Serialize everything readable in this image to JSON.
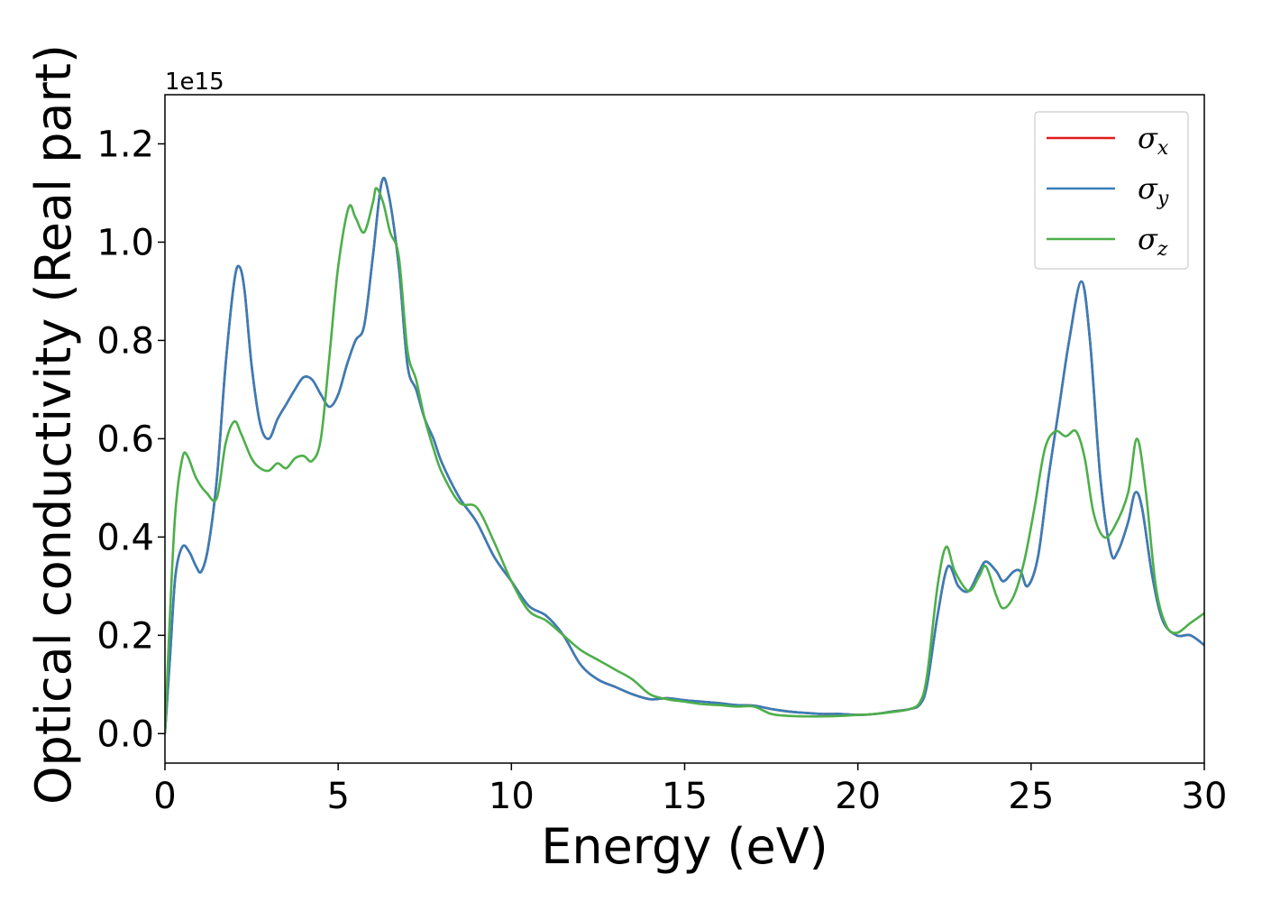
{
  "chart_data": {
    "type": "line",
    "xlabel": "Energy (eV)",
    "ylabel": "Optical conductivity (Real part)",
    "y_offset_label": "1e15",
    "xlim": [
      0,
      30
    ],
    "ylim": [
      -0.06,
      1.3
    ],
    "x_ticks": [
      0,
      5,
      10,
      15,
      20,
      25,
      30
    ],
    "x_tick_labels": [
      "0",
      "5",
      "10",
      "15",
      "20",
      "25",
      "30"
    ],
    "y_ticks": [
      0.0,
      0.2,
      0.4,
      0.6,
      0.8,
      1.0,
      1.2
    ],
    "y_tick_labels": [
      "0.0",
      "0.2",
      "0.4",
      "0.6",
      "0.8",
      "1.0",
      "1.2"
    ],
    "grid": false,
    "legend_position": "top-right",
    "series": [
      {
        "name": "σ",
        "subscript": "x",
        "color": "#e41a1c",
        "points": [
          [
            0,
            0.0
          ],
          [
            0.15,
            0.16
          ],
          [
            0.3,
            0.32
          ],
          [
            0.5,
            0.38
          ],
          [
            0.7,
            0.37
          ],
          [
            0.9,
            0.34
          ],
          [
            1.05,
            0.33
          ],
          [
            1.25,
            0.38
          ],
          [
            1.5,
            0.52
          ],
          [
            1.75,
            0.75
          ],
          [
            2.0,
            0.92
          ],
          [
            2.15,
            0.95
          ],
          [
            2.3,
            0.9
          ],
          [
            2.5,
            0.75
          ],
          [
            2.75,
            0.63
          ],
          [
            3.0,
            0.6
          ],
          [
            3.25,
            0.64
          ],
          [
            3.5,
            0.67
          ],
          [
            3.75,
            0.7
          ],
          [
            4.0,
            0.725
          ],
          [
            4.25,
            0.72
          ],
          [
            4.5,
            0.69
          ],
          [
            4.75,
            0.665
          ],
          [
            5.0,
            0.69
          ],
          [
            5.25,
            0.75
          ],
          [
            5.5,
            0.8
          ],
          [
            5.75,
            0.83
          ],
          [
            6.0,
            0.97
          ],
          [
            6.25,
            1.12
          ],
          [
            6.45,
            1.1
          ],
          [
            6.75,
            0.95
          ],
          [
            7.0,
            0.75
          ],
          [
            7.25,
            0.7
          ],
          [
            7.5,
            0.64
          ],
          [
            7.75,
            0.6
          ],
          [
            8.0,
            0.55
          ],
          [
            8.5,
            0.48
          ],
          [
            9.0,
            0.43
          ],
          [
            9.5,
            0.36
          ],
          [
            10.0,
            0.31
          ],
          [
            10.5,
            0.26
          ],
          [
            11.0,
            0.24
          ],
          [
            11.5,
            0.2
          ],
          [
            12.0,
            0.14
          ],
          [
            12.5,
            0.11
          ],
          [
            13.0,
            0.095
          ],
          [
            13.5,
            0.08
          ],
          [
            14.0,
            0.07
          ],
          [
            14.5,
            0.072
          ],
          [
            15.0,
            0.068
          ],
          [
            15.5,
            0.065
          ],
          [
            16.0,
            0.062
          ],
          [
            16.5,
            0.058
          ],
          [
            17.0,
            0.057
          ],
          [
            17.5,
            0.05
          ],
          [
            18.0,
            0.045
          ],
          [
            18.5,
            0.042
          ],
          [
            19.0,
            0.04
          ],
          [
            19.5,
            0.04
          ],
          [
            20.0,
            0.038
          ],
          [
            20.5,
            0.04
          ],
          [
            21.0,
            0.045
          ],
          [
            21.5,
            0.05
          ],
          [
            21.8,
            0.06
          ],
          [
            22.0,
            0.1
          ],
          [
            22.3,
            0.24
          ],
          [
            22.6,
            0.34
          ],
          [
            22.9,
            0.3
          ],
          [
            23.2,
            0.29
          ],
          [
            23.5,
            0.33
          ],
          [
            23.7,
            0.35
          ],
          [
            24.0,
            0.33
          ],
          [
            24.2,
            0.31
          ],
          [
            24.5,
            0.33
          ],
          [
            24.7,
            0.33
          ],
          [
            24.9,
            0.3
          ],
          [
            25.2,
            0.36
          ],
          [
            25.5,
            0.52
          ],
          [
            25.8,
            0.66
          ],
          [
            26.1,
            0.8
          ],
          [
            26.45,
            0.92
          ],
          [
            26.7,
            0.8
          ],
          [
            27.0,
            0.52
          ],
          [
            27.3,
            0.37
          ],
          [
            27.5,
            0.37
          ],
          [
            27.8,
            0.43
          ],
          [
            28.0,
            0.49
          ],
          [
            28.2,
            0.46
          ],
          [
            28.5,
            0.32
          ],
          [
            28.8,
            0.23
          ],
          [
            29.2,
            0.2
          ],
          [
            29.6,
            0.2
          ],
          [
            30.0,
            0.18
          ]
        ]
      },
      {
        "name": "σ",
        "subscript": "y",
        "color": "#377eb8",
        "points": [
          [
            0,
            0.0
          ],
          [
            0.15,
            0.16
          ],
          [
            0.3,
            0.32
          ],
          [
            0.5,
            0.38
          ],
          [
            0.7,
            0.37
          ],
          [
            0.9,
            0.34
          ],
          [
            1.05,
            0.33
          ],
          [
            1.25,
            0.38
          ],
          [
            1.5,
            0.52
          ],
          [
            1.75,
            0.75
          ],
          [
            2.0,
            0.92
          ],
          [
            2.15,
            0.95
          ],
          [
            2.3,
            0.9
          ],
          [
            2.5,
            0.75
          ],
          [
            2.75,
            0.63
          ],
          [
            3.0,
            0.6
          ],
          [
            3.25,
            0.64
          ],
          [
            3.5,
            0.67
          ],
          [
            3.75,
            0.7
          ],
          [
            4.0,
            0.725
          ],
          [
            4.25,
            0.72
          ],
          [
            4.5,
            0.69
          ],
          [
            4.75,
            0.665
          ],
          [
            5.0,
            0.69
          ],
          [
            5.25,
            0.75
          ],
          [
            5.5,
            0.8
          ],
          [
            5.75,
            0.83
          ],
          [
            6.0,
            0.97
          ],
          [
            6.25,
            1.12
          ],
          [
            6.45,
            1.1
          ],
          [
            6.75,
            0.95
          ],
          [
            7.0,
            0.75
          ],
          [
            7.25,
            0.7
          ],
          [
            7.5,
            0.64
          ],
          [
            7.75,
            0.6
          ],
          [
            8.0,
            0.55
          ],
          [
            8.5,
            0.48
          ],
          [
            9.0,
            0.43
          ],
          [
            9.5,
            0.36
          ],
          [
            10.0,
            0.31
          ],
          [
            10.5,
            0.26
          ],
          [
            11.0,
            0.24
          ],
          [
            11.5,
            0.2
          ],
          [
            12.0,
            0.14
          ],
          [
            12.5,
            0.11
          ],
          [
            13.0,
            0.095
          ],
          [
            13.5,
            0.08
          ],
          [
            14.0,
            0.07
          ],
          [
            14.5,
            0.072
          ],
          [
            15.0,
            0.068
          ],
          [
            15.5,
            0.065
          ],
          [
            16.0,
            0.062
          ],
          [
            16.5,
            0.058
          ],
          [
            17.0,
            0.057
          ],
          [
            17.5,
            0.05
          ],
          [
            18.0,
            0.045
          ],
          [
            18.5,
            0.042
          ],
          [
            19.0,
            0.04
          ],
          [
            19.5,
            0.04
          ],
          [
            20.0,
            0.038
          ],
          [
            20.5,
            0.04
          ],
          [
            21.0,
            0.045
          ],
          [
            21.5,
            0.05
          ],
          [
            21.8,
            0.06
          ],
          [
            22.0,
            0.1
          ],
          [
            22.3,
            0.24
          ],
          [
            22.6,
            0.34
          ],
          [
            22.9,
            0.3
          ],
          [
            23.2,
            0.29
          ],
          [
            23.5,
            0.33
          ],
          [
            23.7,
            0.35
          ],
          [
            24.0,
            0.33
          ],
          [
            24.2,
            0.31
          ],
          [
            24.5,
            0.33
          ],
          [
            24.7,
            0.33
          ],
          [
            24.9,
            0.3
          ],
          [
            25.2,
            0.36
          ],
          [
            25.5,
            0.52
          ],
          [
            25.8,
            0.66
          ],
          [
            26.1,
            0.8
          ],
          [
            26.45,
            0.92
          ],
          [
            26.7,
            0.8
          ],
          [
            27.0,
            0.52
          ],
          [
            27.3,
            0.37
          ],
          [
            27.5,
            0.37
          ],
          [
            27.8,
            0.43
          ],
          [
            28.0,
            0.49
          ],
          [
            28.2,
            0.46
          ],
          [
            28.5,
            0.32
          ],
          [
            28.8,
            0.23
          ],
          [
            29.2,
            0.2
          ],
          [
            29.6,
            0.2
          ],
          [
            30.0,
            0.18
          ]
        ]
      },
      {
        "name": "σ",
        "subscript": "z",
        "color": "#4daf4a",
        "points": [
          [
            0,
            0.0
          ],
          [
            0.15,
            0.25
          ],
          [
            0.3,
            0.45
          ],
          [
            0.5,
            0.56
          ],
          [
            0.65,
            0.565
          ],
          [
            0.9,
            0.52
          ],
          [
            1.2,
            0.49
          ],
          [
            1.5,
            0.48
          ],
          [
            1.75,
            0.59
          ],
          [
            2.0,
            0.635
          ],
          [
            2.2,
            0.61
          ],
          [
            2.5,
            0.56
          ],
          [
            2.75,
            0.54
          ],
          [
            3.0,
            0.535
          ],
          [
            3.25,
            0.55
          ],
          [
            3.5,
            0.54
          ],
          [
            3.75,
            0.56
          ],
          [
            4.0,
            0.565
          ],
          [
            4.25,
            0.555
          ],
          [
            4.5,
            0.6
          ],
          [
            4.75,
            0.77
          ],
          [
            5.0,
            0.95
          ],
          [
            5.3,
            1.07
          ],
          [
            5.5,
            1.05
          ],
          [
            5.75,
            1.02
          ],
          [
            6.0,
            1.08
          ],
          [
            6.1,
            1.11
          ],
          [
            6.3,
            1.08
          ],
          [
            6.5,
            1.02
          ],
          [
            6.75,
            0.97
          ],
          [
            7.0,
            0.78
          ],
          [
            7.25,
            0.72
          ],
          [
            7.5,
            0.64
          ],
          [
            7.75,
            0.58
          ],
          [
            8.0,
            0.53
          ],
          [
            8.5,
            0.47
          ],
          [
            9.0,
            0.46
          ],
          [
            9.5,
            0.39
          ],
          [
            10.0,
            0.31
          ],
          [
            10.5,
            0.25
          ],
          [
            11.0,
            0.23
          ],
          [
            11.5,
            0.2
          ],
          [
            12.0,
            0.17
          ],
          [
            12.5,
            0.15
          ],
          [
            13.0,
            0.13
          ],
          [
            13.5,
            0.11
          ],
          [
            14.0,
            0.08
          ],
          [
            14.5,
            0.07
          ],
          [
            15.0,
            0.065
          ],
          [
            15.5,
            0.06
          ],
          [
            16.0,
            0.058
          ],
          [
            16.5,
            0.055
          ],
          [
            17.0,
            0.055
          ],
          [
            17.5,
            0.04
          ],
          [
            18.0,
            0.036
          ],
          [
            18.5,
            0.035
          ],
          [
            19.0,
            0.035
          ],
          [
            19.5,
            0.036
          ],
          [
            20.0,
            0.038
          ],
          [
            20.5,
            0.04
          ],
          [
            21.0,
            0.044
          ],
          [
            21.5,
            0.05
          ],
          [
            21.8,
            0.065
          ],
          [
            22.0,
            0.12
          ],
          [
            22.3,
            0.3
          ],
          [
            22.55,
            0.38
          ],
          [
            22.8,
            0.33
          ],
          [
            23.2,
            0.29
          ],
          [
            23.5,
            0.32
          ],
          [
            23.7,
            0.34
          ],
          [
            24.0,
            0.28
          ],
          [
            24.2,
            0.255
          ],
          [
            24.5,
            0.28
          ],
          [
            24.8,
            0.35
          ],
          [
            25.1,
            0.46
          ],
          [
            25.4,
            0.58
          ],
          [
            25.7,
            0.615
          ],
          [
            26.0,
            0.605
          ],
          [
            26.3,
            0.615
          ],
          [
            26.55,
            0.56
          ],
          [
            26.8,
            0.45
          ],
          [
            27.1,
            0.4
          ],
          [
            27.4,
            0.42
          ],
          [
            27.8,
            0.49
          ],
          [
            28.05,
            0.6
          ],
          [
            28.3,
            0.5
          ],
          [
            28.6,
            0.3
          ],
          [
            28.9,
            0.22
          ],
          [
            29.2,
            0.205
          ],
          [
            29.6,
            0.225
          ],
          [
            30.0,
            0.245
          ]
        ]
      }
    ]
  }
}
